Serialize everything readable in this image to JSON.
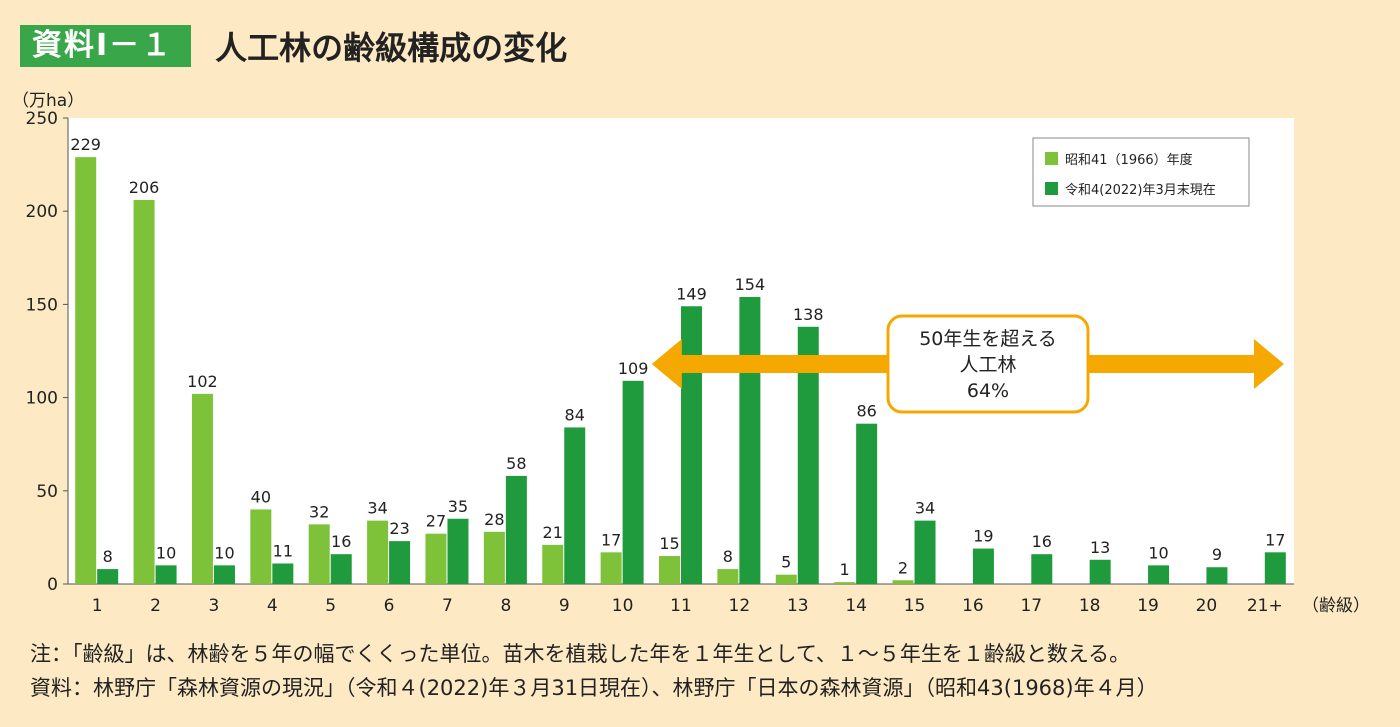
{
  "header": {
    "badge": "資料Ⅰ－１",
    "title": "人工林の齢級構成の変化"
  },
  "chart_data": {
    "type": "bar",
    "ylabel": "（万ha）",
    "xlabel": "（齢級）",
    "ylim": [
      0,
      250
    ],
    "yticks": [
      0,
      50,
      100,
      150,
      200,
      250
    ],
    "categories": [
      "1",
      "2",
      "3",
      "4",
      "5",
      "6",
      "7",
      "8",
      "9",
      "10",
      "11",
      "12",
      "13",
      "14",
      "15",
      "16",
      "17",
      "18",
      "19",
      "20",
      "21+"
    ],
    "series": [
      {
        "name": "昭和41（1966）年度",
        "color": "#7ec23a",
        "values": [
          229,
          206,
          102,
          40,
          32,
          34,
          27,
          28,
          21,
          17,
          15,
          8,
          5,
          1,
          2,
          null,
          null,
          null,
          null,
          null,
          null
        ]
      },
      {
        "name": "令和4(2022)年3月末現在",
        "color": "#1f9a3c",
        "values": [
          8,
          10,
          10,
          11,
          16,
          23,
          35,
          58,
          84,
          109,
          149,
          154,
          138,
          86,
          34,
          19,
          16,
          13,
          10,
          9,
          17
        ]
      }
    ],
    "legend_position": "top-right",
    "annotation": {
      "lines": [
        "50年生を超える",
        "人工林",
        "64%"
      ],
      "from_category": "11",
      "to_category": "21+"
    }
  },
  "notes": {
    "note": "注：「齢級」は、林齢を５年の幅でくくった単位。苗木を植栽した年を１年生として、１～５年生を１齢級と数える。",
    "source": "資料：林野庁「森林資源の現況」（令和４(2022)年３月31日現在）、林野庁「日本の森林資源」（昭和43(1968)年４月）"
  }
}
